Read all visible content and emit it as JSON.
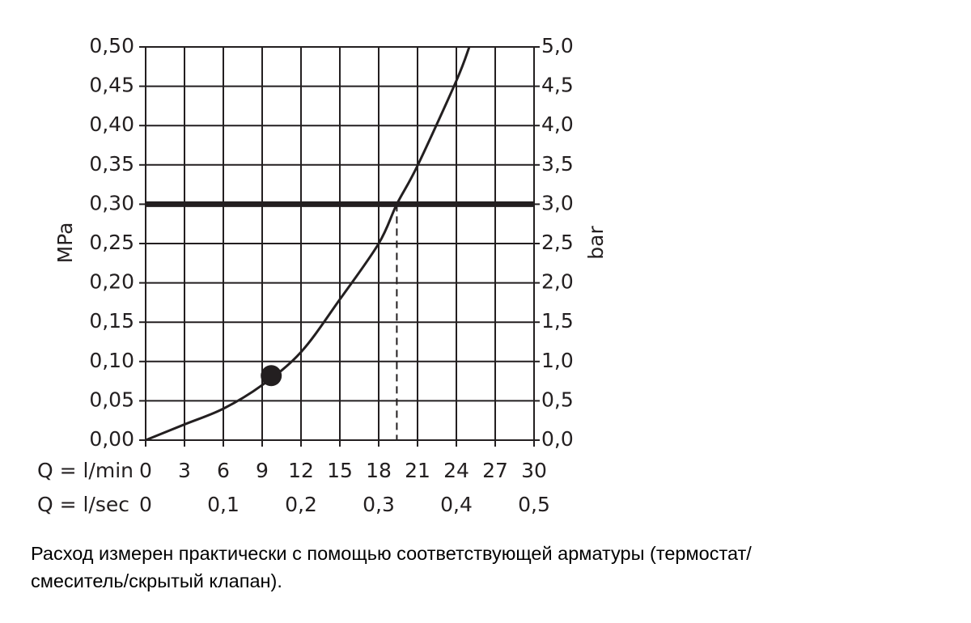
{
  "chart_data": {
    "type": "line",
    "y_label": "MPa",
    "y2_label": "bar",
    "x_label": "Q = l/min",
    "x2_label": "Q = l/sec",
    "xlim": [
      0,
      30
    ],
    "xticks": [
      0,
      3,
      6,
      9,
      12,
      15,
      18,
      21,
      24,
      27,
      30
    ],
    "x2lim": [
      0,
      0.5
    ],
    "x2ticks": [
      0,
      {
        "value": 0.1,
        "label": "0,1"
      },
      {
        "value": 0.2,
        "label": "0,2"
      },
      {
        "value": 0.3,
        "label": "0,3"
      },
      {
        "value": 0.4,
        "label": "0,4"
      },
      {
        "value": 0.5,
        "label": "0,5"
      }
    ],
    "ylim": [
      0,
      0.5
    ],
    "yticks": [
      {
        "value": 0,
        "label": "0,00"
      },
      {
        "value": 0.05,
        "label": "0,05"
      },
      {
        "value": 0.1,
        "label": "0,10"
      },
      {
        "value": 0.15,
        "label": "0,15"
      },
      {
        "value": 0.2,
        "label": "0,20"
      },
      {
        "value": 0.25,
        "label": "0,25"
      },
      {
        "value": 0.3,
        "label": "0,30"
      },
      {
        "value": 0.35,
        "label": "0,35"
      },
      {
        "value": 0.4,
        "label": "0,40"
      },
      {
        "value": 0.45,
        "label": "0,45"
      },
      {
        "value": 0.5,
        "label": "0,50"
      }
    ],
    "y2lim": [
      0,
      5
    ],
    "y2ticks": [
      {
        "value": 0,
        "label": "0,0"
      },
      {
        "value": 0.5,
        "label": "0,5"
      },
      {
        "value": 1,
        "label": "1,0"
      },
      {
        "value": 1.5,
        "label": "1,5"
      },
      {
        "value": 2,
        "label": "2,0"
      },
      {
        "value": 2.5,
        "label": "2,5"
      },
      {
        "value": 3,
        "label": "3,0"
      },
      {
        "value": 3.5,
        "label": "3,5"
      },
      {
        "value": 4,
        "label": "4,0"
      },
      {
        "value": 4.5,
        "label": "4,5"
      },
      {
        "value": 5,
        "label": "5,0"
      }
    ],
    "grid": true,
    "series": [
      {
        "color": "#231f20",
        "x": [
          0,
          3,
          6,
          9,
          12,
          15,
          18,
          19.4,
          21,
          24,
          25
        ],
        "values": [
          0,
          0.02,
          0.04,
          0.07,
          0.112,
          0.179,
          0.25,
          0.3,
          0.349,
          0.457,
          0.5
        ]
      }
    ],
    "marker": {
      "x": 9.7,
      "y": 0.082
    },
    "reference_y": 0.3,
    "reference_x": 19.4,
    "caption": [
      "Расход измерен практически с помощью соответствующей арматуры (термостат/",
      "смеситель/скрытый клапан)."
    ]
  }
}
